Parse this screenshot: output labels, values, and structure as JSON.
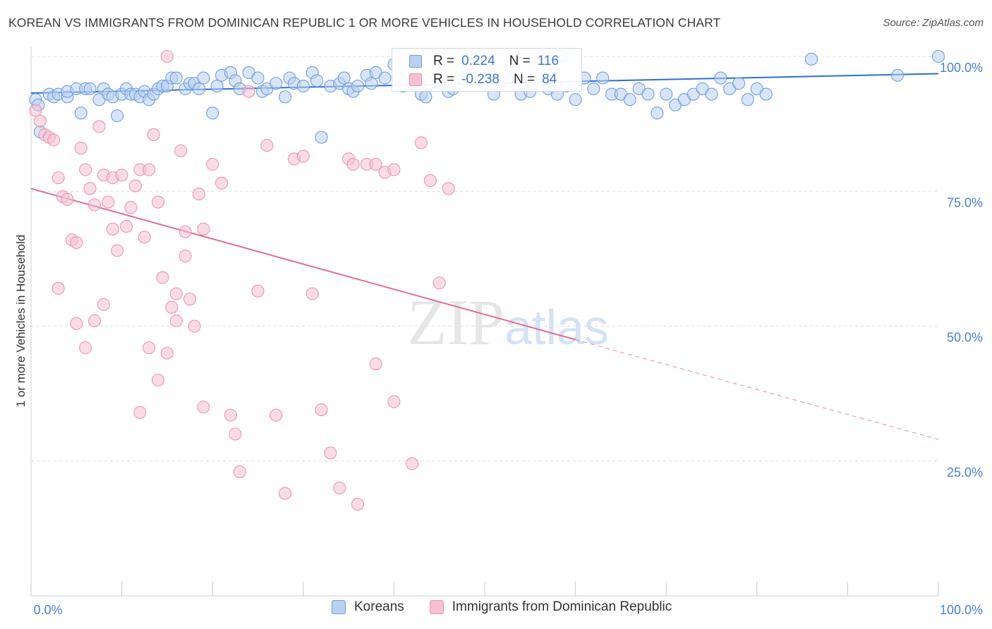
{
  "chart_data": {
    "type": "scatter",
    "title": "KOREAN VS IMMIGRANTS FROM DOMINICAN REPUBLIC 1 OR MORE VEHICLES IN HOUSEHOLD CORRELATION CHART",
    "source": "Source: ZipAtlas.com",
    "ylabel": "1 or more Vehicles in Household",
    "xlabel": "",
    "xlim": [
      0,
      100
    ],
    "ylim": [
      0,
      100
    ],
    "x_tick_labels": [
      "0.0%",
      "100.0%"
    ],
    "y_ticks": [
      25,
      50,
      75,
      100
    ],
    "y_tick_labels": [
      "25.0%",
      "50.0%",
      "75.0%",
      "100.0%"
    ],
    "grid": true,
    "watermark": "ZIPatlas",
    "legend": [
      {
        "name": "Koreans",
        "r_label": "R =",
        "r_value": "0.224",
        "n_label": "N =",
        "n_value": "116"
      },
      {
        "name": "Immigrants from Dominican Republic",
        "r_label": "R =",
        "r_value": "-0.238",
        "n_label": "N =",
        "n_value": "84"
      }
    ],
    "series": [
      {
        "name": "Koreans",
        "color": "#6f9fe0",
        "fill": "#b9d0f1",
        "trend": {
          "x": [
            0,
            100
          ],
          "y": [
            93.2,
            96.8
          ],
          "color": "#2f6fd0"
        },
        "points": [
          [
            0.5,
            92
          ],
          [
            0.8,
            91
          ],
          [
            1,
            86
          ],
          [
            2,
            93
          ],
          [
            2.5,
            92.5
          ],
          [
            3,
            93
          ],
          [
            4,
            92.5
          ],
          [
            4,
            93.5
          ],
          [
            5,
            94
          ],
          [
            5.5,
            89.5
          ],
          [
            6,
            94
          ],
          [
            6.5,
            94
          ],
          [
            7.5,
            92
          ],
          [
            8,
            94
          ],
          [
            8.5,
            93
          ],
          [
            9,
            92.5
          ],
          [
            9.5,
            89
          ],
          [
            10,
            93
          ],
          [
            10.5,
            94
          ],
          [
            11,
            93
          ],
          [
            11.5,
            93
          ],
          [
            12,
            92.5
          ],
          [
            12.5,
            93.5
          ],
          [
            13,
            92
          ],
          [
            13.5,
            93
          ],
          [
            14,
            94
          ],
          [
            14.5,
            94.5
          ],
          [
            15,
            94.5
          ],
          [
            15.5,
            96
          ],
          [
            16,
            96
          ],
          [
            17,
            94
          ],
          [
            17.5,
            95
          ],
          [
            18,
            95
          ],
          [
            18.5,
            94
          ],
          [
            19,
            96
          ],
          [
            20,
            89.5
          ],
          [
            20.5,
            94.5
          ],
          [
            21,
            96.5
          ],
          [
            22,
            97
          ],
          [
            22.5,
            95.5
          ],
          [
            23,
            94
          ],
          [
            24,
            97
          ],
          [
            25,
            96
          ],
          [
            25.5,
            93.5
          ],
          [
            26,
            94
          ],
          [
            27,
            95
          ],
          [
            28,
            92.5
          ],
          [
            28.5,
            96
          ],
          [
            29,
            95
          ],
          [
            30,
            94.5
          ],
          [
            31,
            97
          ],
          [
            31.5,
            95.5
          ],
          [
            32,
            85
          ],
          [
            33,
            94.5
          ],
          [
            34,
            95
          ],
          [
            34.5,
            96
          ],
          [
            35,
            94
          ],
          [
            35.5,
            93.5
          ],
          [
            36,
            94.5
          ],
          [
            37,
            96.5
          ],
          [
            37.5,
            95
          ],
          [
            38,
            97
          ],
          [
            39,
            96
          ],
          [
            40,
            98.5
          ],
          [
            40.5,
            96
          ],
          [
            41,
            94.5
          ],
          [
            42,
            95
          ],
          [
            43,
            93
          ],
          [
            43.5,
            92.5
          ],
          [
            44,
            95
          ],
          [
            45,
            95
          ],
          [
            46,
            93.5
          ],
          [
            46.5,
            94
          ],
          [
            48,
            96
          ],
          [
            48.5,
            100
          ],
          [
            49.5,
            100
          ],
          [
            50,
            95
          ],
          [
            50.5,
            97
          ],
          [
            51,
            93
          ],
          [
            52,
            95.5
          ],
          [
            53,
            96
          ],
          [
            54,
            93
          ],
          [
            55,
            93.5
          ],
          [
            56,
            95
          ],
          [
            57,
            94
          ],
          [
            58,
            93
          ],
          [
            58.5,
            100
          ],
          [
            59,
            94.5
          ],
          [
            60,
            92
          ],
          [
            61,
            96
          ],
          [
            62,
            94
          ],
          [
            63,
            96
          ],
          [
            64,
            93
          ],
          [
            65,
            93
          ],
          [
            66,
            92
          ],
          [
            67,
            94
          ],
          [
            68,
            93
          ],
          [
            69,
            89.5
          ],
          [
            70,
            93
          ],
          [
            71,
            91
          ],
          [
            72,
            92
          ],
          [
            73,
            93
          ],
          [
            74,
            94
          ],
          [
            75,
            93
          ],
          [
            76,
            96
          ],
          [
            77,
            94
          ],
          [
            78,
            95
          ],
          [
            79,
            92
          ],
          [
            80,
            94
          ],
          [
            81,
            93
          ],
          [
            86,
            99.5
          ],
          [
            95.5,
            96.5
          ],
          [
            100,
            100
          ]
        ]
      },
      {
        "name": "Immigrants from Dominican Republic",
        "color": "#ea96b2",
        "fill": "#f5c0d2",
        "trend": {
          "x": [
            0,
            60
          ],
          "y": [
            75.5,
            47.5
          ],
          "color": "#e06a95",
          "dashed_to": {
            "x": 100,
            "y": 29
          }
        },
        "points": [
          [
            0.5,
            90
          ],
          [
            1,
            88
          ],
          [
            1.5,
            85.5
          ],
          [
            2,
            85
          ],
          [
            2.5,
            84.5
          ],
          [
            3,
            77.5
          ],
          [
            3.5,
            74
          ],
          [
            4,
            73.5
          ],
          [
            4.5,
            66
          ],
          [
            5,
            65.5
          ],
          [
            5.5,
            83
          ],
          [
            6,
            79
          ],
          [
            6.5,
            75.5
          ],
          [
            7,
            72.5
          ],
          [
            7.5,
            87
          ],
          [
            8,
            78
          ],
          [
            8.5,
            73
          ],
          [
            9,
            77.5
          ],
          [
            9.5,
            64
          ],
          [
            10,
            78
          ],
          [
            10.5,
            68.5
          ],
          [
            11,
            72
          ],
          [
            11.5,
            76
          ],
          [
            12,
            79
          ],
          [
            12.5,
            66.5
          ],
          [
            13,
            79
          ],
          [
            13.5,
            85.5
          ],
          [
            14,
            73
          ],
          [
            14.5,
            59
          ],
          [
            15,
            45
          ],
          [
            15.5,
            53.5
          ],
          [
            16,
            51
          ],
          [
            16.5,
            82.5
          ],
          [
            17,
            67.5
          ],
          [
            18,
            50
          ],
          [
            18.5,
            74.5
          ],
          [
            19,
            68
          ],
          [
            20,
            80
          ],
          [
            21,
            76.5
          ],
          [
            22,
            33.5
          ],
          [
            22.5,
            30
          ],
          [
            23,
            23
          ],
          [
            24,
            93.5
          ],
          [
            25,
            56.5
          ],
          [
            26,
            83.5
          ],
          [
            27,
            33.5
          ],
          [
            28,
            19
          ],
          [
            29,
            81
          ],
          [
            30,
            81.5
          ],
          [
            31,
            56
          ],
          [
            32,
            34.5
          ],
          [
            33,
            26.5
          ],
          [
            34,
            20
          ],
          [
            35,
            81
          ],
          [
            36,
            17
          ],
          [
            37,
            80
          ],
          [
            38,
            43
          ],
          [
            39,
            78.5
          ],
          [
            40,
            36
          ],
          [
            42,
            24.5
          ],
          [
            43,
            84
          ],
          [
            44,
            77
          ],
          [
            45,
            58
          ],
          [
            46,
            75.5
          ],
          [
            5,
            50.5
          ],
          [
            6,
            46
          ],
          [
            8,
            54
          ],
          [
            7,
            51
          ],
          [
            17.5,
            55
          ],
          [
            17,
            63
          ],
          [
            9,
            68
          ],
          [
            3,
            57
          ],
          [
            13,
            46
          ],
          [
            12,
            34
          ],
          [
            16,
            56
          ],
          [
            19,
            35
          ],
          [
            14,
            40
          ],
          [
            38,
            80
          ],
          [
            35.5,
            80
          ],
          [
            40,
            79
          ],
          [
            50,
            96
          ],
          [
            15,
            100
          ]
        ]
      }
    ]
  }
}
